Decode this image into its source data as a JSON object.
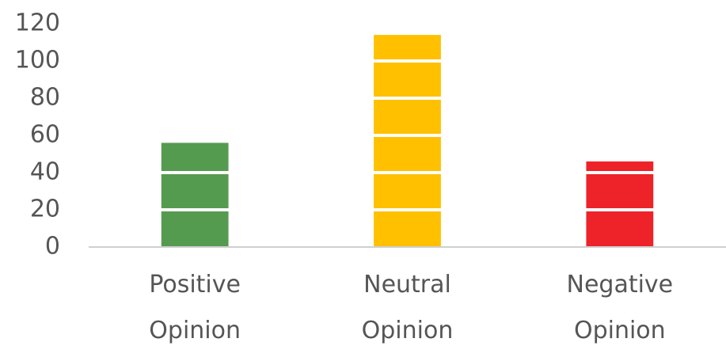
{
  "chart_data": {
    "type": "bar",
    "categories": [
      "Positive Opinion",
      "Neutral Opinion",
      "Negative Opinion"
    ],
    "values": [
      56,
      114,
      46
    ],
    "colors": [
      "#559b4f",
      "#ffc000",
      "#ee2229"
    ],
    "ylim": [
      0,
      120
    ],
    "yticks": [
      0,
      20,
      40,
      60,
      80,
      100,
      120
    ],
    "grid": true
  }
}
